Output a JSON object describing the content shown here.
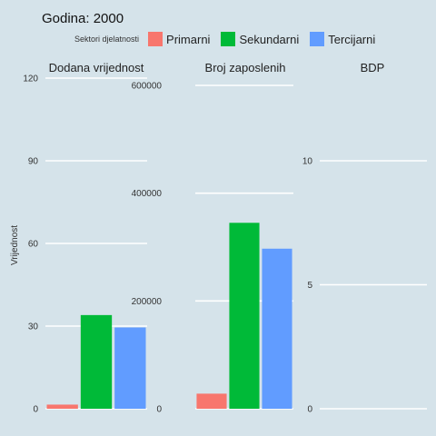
{
  "chart_data": {
    "type": "bar",
    "title": "Godina: 2000",
    "ylabel": "Vrijednost",
    "xlabel": "",
    "legend": {
      "title": "Sektori djelatnosti",
      "placement": "top",
      "entries": [
        {
          "name": "Primarni",
          "color": "#f8766d"
        },
        {
          "name": "Sekundarni",
          "color": "#00ba38"
        },
        {
          "name": "Tercijarni",
          "color": "#619cff"
        }
      ]
    },
    "grid": true,
    "facets": [
      {
        "name": "Dodana vrijednost",
        "ylim": [
          0,
          120
        ],
        "ticks": [
          0,
          30,
          60,
          90,
          120
        ],
        "tick_labels": [
          "0",
          "30",
          "60",
          "90",
          "120"
        ],
        "values": [
          1.5,
          34,
          29.5
        ]
      },
      {
        "name": "Broj zaposlenih",
        "ylim": [
          0,
          600000
        ],
        "ticks": [
          0,
          200000,
          400000,
          600000
        ],
        "tick_labels": [
          "0",
          "200000",
          "400000",
          "600000"
        ],
        "values": [
          28000,
          345000,
          297000
        ]
      },
      {
        "name": "BDP",
        "ylim": [
          0,
          10
        ],
        "ticks": [
          0,
          5,
          10
        ],
        "tick_labels": [
          "0",
          "5",
          "10"
        ],
        "values": [
          0,
          0,
          0
        ]
      }
    ]
  }
}
